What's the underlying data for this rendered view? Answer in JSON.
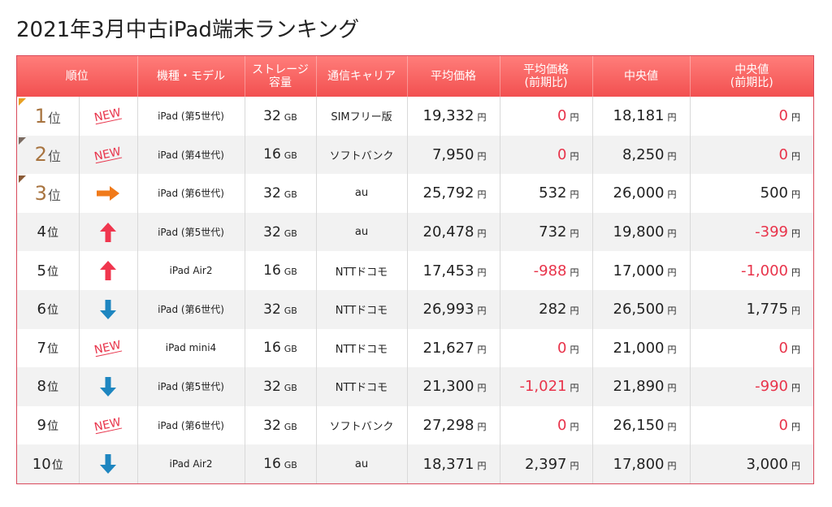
{
  "title": "2021年3月中古iPad端末ランキング",
  "headers": [
    "順位",
    "機種・モデル",
    "ストレージ\n容量",
    "通信キャリア",
    "平均価格",
    "平均価格\n(前期比)",
    "中央値",
    "中央値\n(前期比)"
  ],
  "colors": {
    "header_top": "#ff7d7a",
    "header_bottom": "#f25050",
    "negative": "#e8334a",
    "arrow_up": "#f0364e",
    "arrow_down": "#1e86c0",
    "arrow_right": "#f07a1a",
    "gold": "#e8a020",
    "silver": "#7a6a60",
    "bronze": "#8a5a35"
  },
  "rows": [
    {
      "rank": "1",
      "rank_unit": "位",
      "trend": "new",
      "trend_label": "NEW",
      "model": "iPad (第5世代)",
      "storage": "32",
      "storage_unit": "GB",
      "carrier": "SIMフリー版",
      "avg_price": "19,332",
      "avg_change": "0",
      "median": "18,181",
      "median_change": "0",
      "yen": "円"
    },
    {
      "rank": "2",
      "rank_unit": "位",
      "trend": "new",
      "trend_label": "NEW",
      "model": "iPad (第4世代)",
      "storage": "16",
      "storage_unit": "GB",
      "carrier": "ソフトバンク",
      "avg_price": "7,950",
      "avg_change": "0",
      "median": "8,250",
      "median_change": "0",
      "yen": "円"
    },
    {
      "rank": "3",
      "rank_unit": "位",
      "trend": "right-arrow",
      "trend_label": "",
      "model": "iPad (第6世代)",
      "storage": "32",
      "storage_unit": "GB",
      "carrier": "au",
      "avg_price": "25,792",
      "avg_change": "532",
      "median": "26,000",
      "median_change": "500",
      "yen": "円"
    },
    {
      "rank": "4",
      "rank_unit": "位",
      "trend": "up-arrow",
      "trend_label": "",
      "model": "iPad (第5世代)",
      "storage": "32",
      "storage_unit": "GB",
      "carrier": "au",
      "avg_price": "20,478",
      "avg_change": "732",
      "median": "19,800",
      "median_change": "-399",
      "yen": "円"
    },
    {
      "rank": "5",
      "rank_unit": "位",
      "trend": "up-arrow",
      "trend_label": "",
      "model": "iPad Air2",
      "storage": "16",
      "storage_unit": "GB",
      "carrier": "NTTドコモ",
      "avg_price": "17,453",
      "avg_change": "-988",
      "median": "17,000",
      "median_change": "-1,000",
      "yen": "円"
    },
    {
      "rank": "6",
      "rank_unit": "位",
      "trend": "down-arrow",
      "trend_label": "",
      "model": "iPad (第6世代)",
      "storage": "32",
      "storage_unit": "GB",
      "carrier": "NTTドコモ",
      "avg_price": "26,993",
      "avg_change": "282",
      "median": "26,500",
      "median_change": "1,775",
      "yen": "円"
    },
    {
      "rank": "7",
      "rank_unit": "位",
      "trend": "new",
      "trend_label": "NEW",
      "model": "iPad mini4",
      "storage": "16",
      "storage_unit": "GB",
      "carrier": "NTTドコモ",
      "avg_price": "21,627",
      "avg_change": "0",
      "median": "21,000",
      "median_change": "0",
      "yen": "円"
    },
    {
      "rank": "8",
      "rank_unit": "位",
      "trend": "down-arrow",
      "trend_label": "",
      "model": "iPad (第5世代)",
      "storage": "32",
      "storage_unit": "GB",
      "carrier": "NTTドコモ",
      "avg_price": "21,300",
      "avg_change": "-1,021",
      "median": "21,890",
      "median_change": "-990",
      "yen": "円"
    },
    {
      "rank": "9",
      "rank_unit": "位",
      "trend": "new",
      "trend_label": "NEW",
      "model": "iPad (第6世代)",
      "storage": "32",
      "storage_unit": "GB",
      "carrier": "ソフトバンク",
      "avg_price": "27,298",
      "avg_change": "0",
      "median": "26,150",
      "median_change": "0",
      "yen": "円"
    },
    {
      "rank": "10",
      "rank_unit": "位",
      "trend": "down-arrow",
      "trend_label": "",
      "model": "iPad Air2",
      "storage": "16",
      "storage_unit": "GB",
      "carrier": "au",
      "avg_price": "18,371",
      "avg_change": "2,397",
      "median": "17,800",
      "median_change": "3,000",
      "yen": "円"
    }
  ]
}
